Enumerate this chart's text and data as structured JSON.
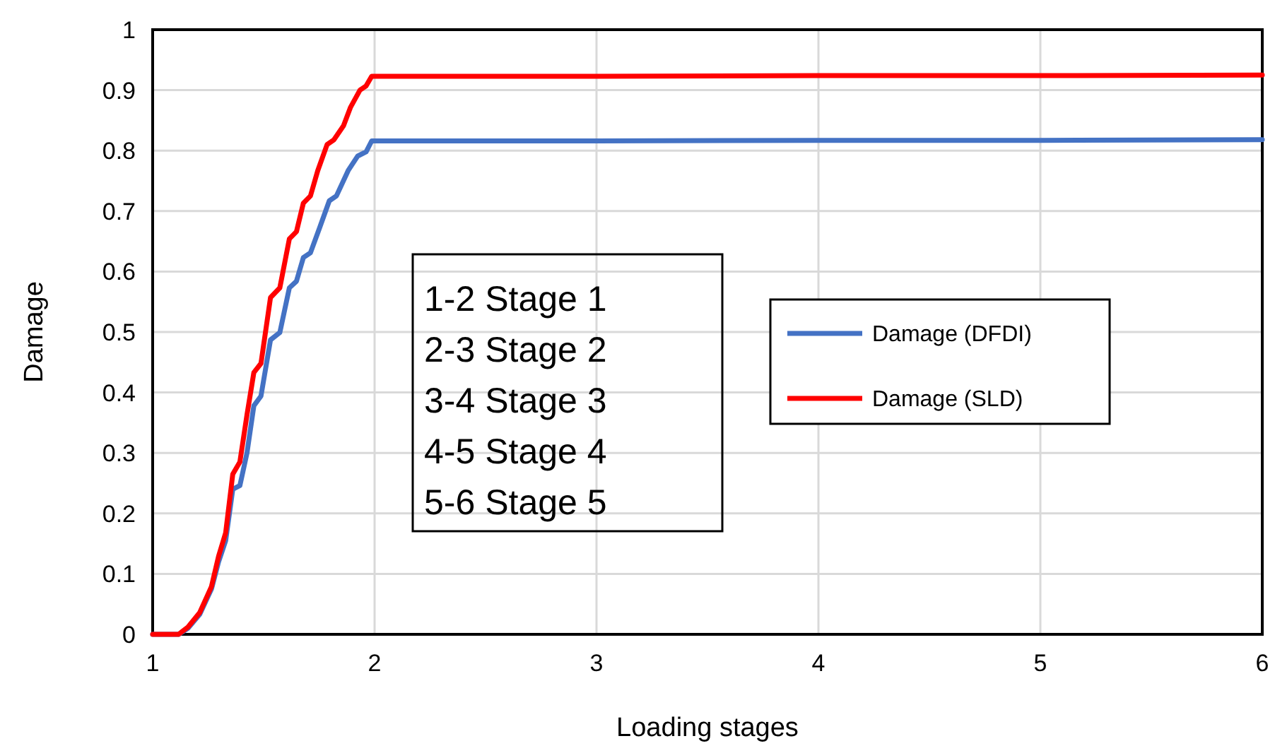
{
  "chart_data": {
    "type": "line",
    "xlabel": "Loading stages",
    "ylabel": "Damage",
    "xlim": [
      1,
      6
    ],
    "ylim": [
      0,
      1
    ],
    "xticks": [
      1,
      2,
      3,
      4,
      5,
      6
    ],
    "yticks": [
      0,
      0.1,
      0.2,
      0.3,
      0.4,
      0.5,
      0.6,
      0.7,
      0.8,
      0.9,
      1
    ],
    "grid": true,
    "legend": "right",
    "line_style": "solid",
    "annotations": [
      "1-2 Stage 1",
      "2-3 Stage 2",
      "3-4 Stage 3",
      "4-5 Stage 4",
      "5-6 Stage 5"
    ],
    "series": [
      {
        "name": "Damage (DFDI)",
        "color": "#4472c4",
        "x": [
          1,
          1.117,
          1.159,
          1.212,
          1.265,
          1.297,
          1.329,
          1.361,
          1.393,
          1.425,
          1.456,
          1.488,
          1.531,
          1.573,
          1.616,
          1.648,
          1.679,
          1.711,
          1.754,
          1.796,
          1.828,
          1.881,
          1.924,
          1.962,
          1.987,
          3,
          4,
          5,
          6
        ],
        "values": [
          0,
          0,
          0.01,
          0.033,
          0.075,
          0.12,
          0.155,
          0.24,
          0.246,
          0.3,
          0.378,
          0.394,
          0.487,
          0.499,
          0.573,
          0.584,
          0.623,
          0.631,
          0.674,
          0.717,
          0.725,
          0.767,
          0.791,
          0.798,
          0.816,
          0.816,
          0.817,
          0.817,
          0.818
        ]
      },
      {
        "name": "Damage (SLD)",
        "color": "#ff0000",
        "x": [
          1,
          1.117,
          1.159,
          1.212,
          1.265,
          1.297,
          1.329,
          1.361,
          1.393,
          1.425,
          1.456,
          1.488,
          1.531,
          1.573,
          1.616,
          1.648,
          1.679,
          1.711,
          1.744,
          1.786,
          1.817,
          1.86,
          1.892,
          1.934,
          1.962,
          1.987,
          3,
          4,
          5,
          6
        ],
        "values": [
          0,
          0,
          0.012,
          0.036,
          0.079,
          0.129,
          0.168,
          0.265,
          0.285,
          0.363,
          0.433,
          0.448,
          0.557,
          0.573,
          0.654,
          0.666,
          0.713,
          0.725,
          0.767,
          0.81,
          0.818,
          0.841,
          0.872,
          0.9,
          0.907,
          0.923,
          0.923,
          0.924,
          0.924,
          0.925
        ]
      }
    ]
  }
}
